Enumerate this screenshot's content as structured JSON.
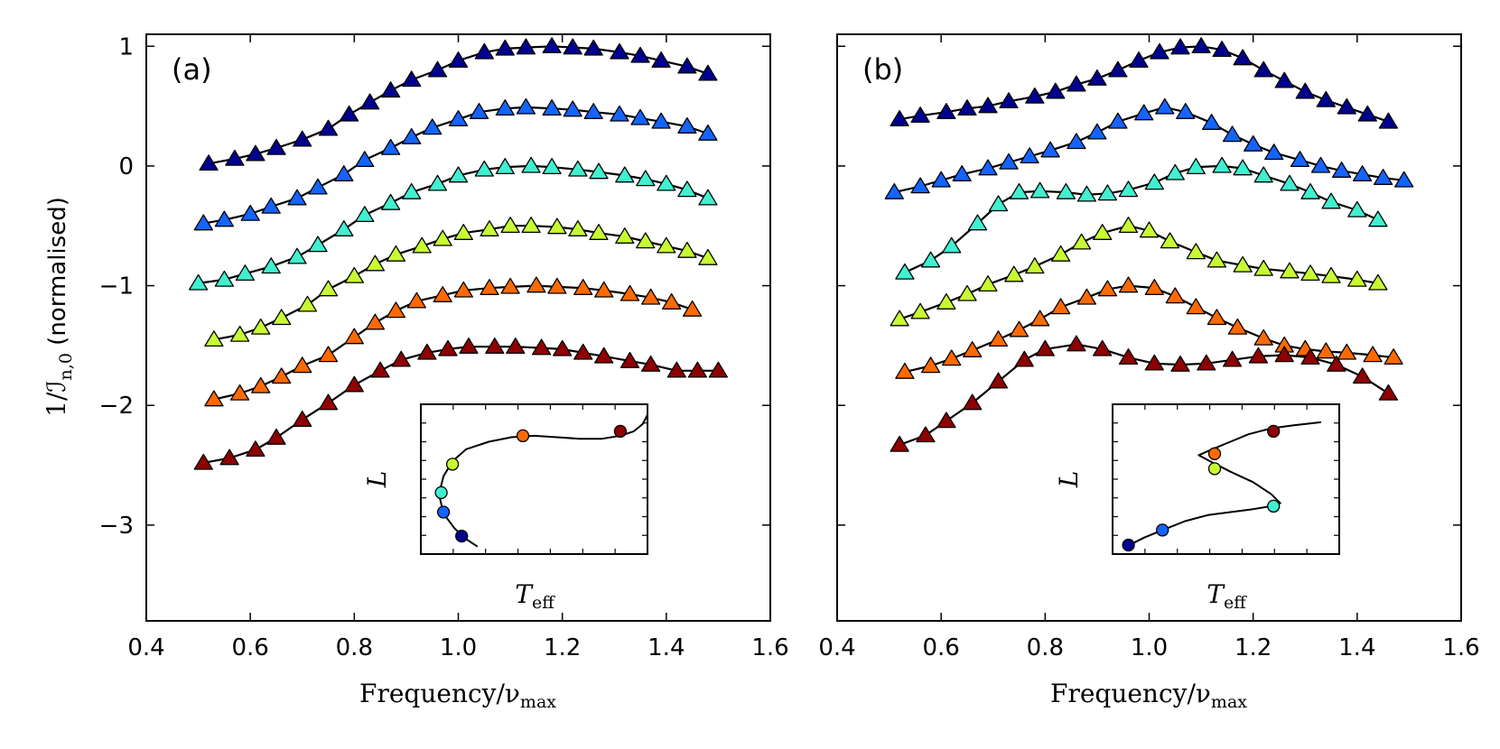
{
  "ylabel": {
    "main": "1/ℐ",
    "sub": "n,0",
    "suffix": " (normalised)"
  },
  "chart_data": [
    {
      "type": "line",
      "panel_label": "(a)",
      "xlabel": "Frequency/ν",
      "xlabel_sub": "max",
      "ylabel": "1/ℐn,0 (normalised)",
      "xlim": [
        0.4,
        1.6
      ],
      "ylim": [
        -3.8,
        1.1
      ],
      "xticks": [
        "0.4",
        "0.6",
        "0.8",
        "1.0",
        "1.2",
        "1.4",
        "1.6"
      ],
      "yticks": [
        "1",
        "0",
        "−1",
        "−2",
        "−3"
      ],
      "ytick_values": [
        1,
        0,
        -1,
        -2,
        -3
      ],
      "series": [
        {
          "name": "series-1",
          "color": "#00008f",
          "x": [
            0.52,
            0.57,
            0.61,
            0.65,
            0.7,
            0.75,
            0.79,
            0.83,
            0.87,
            0.91,
            0.96,
            1.0,
            1.05,
            1.09,
            1.13,
            1.18,
            1.22,
            1.26,
            1.31,
            1.35,
            1.39,
            1.44,
            1.48
          ],
          "y": [
            0.02,
            0.06,
            0.1,
            0.15,
            0.22,
            0.31,
            0.43,
            0.53,
            0.63,
            0.72,
            0.8,
            0.88,
            0.95,
            0.98,
            0.99,
            1.0,
            0.99,
            0.98,
            0.95,
            0.92,
            0.88,
            0.83,
            0.77
          ]
        },
        {
          "name": "series-2",
          "color": "#1464ff",
          "x": [
            0.51,
            0.55,
            0.6,
            0.64,
            0.69,
            0.73,
            0.78,
            0.82,
            0.87,
            0.91,
            0.95,
            1.0,
            1.04,
            1.09,
            1.13,
            1.18,
            1.22,
            1.26,
            1.31,
            1.35,
            1.39,
            1.44,
            1.48
          ],
          "y": [
            -0.48,
            -0.45,
            -0.4,
            -0.34,
            -0.27,
            -0.18,
            -0.07,
            0.05,
            0.15,
            0.24,
            0.32,
            0.39,
            0.45,
            0.48,
            0.49,
            0.48,
            0.47,
            0.45,
            0.43,
            0.4,
            0.37,
            0.33,
            0.27
          ]
        },
        {
          "name": "series-3",
          "color": "#40f0d0",
          "x": [
            0.5,
            0.55,
            0.59,
            0.64,
            0.69,
            0.73,
            0.78,
            0.82,
            0.87,
            0.91,
            0.96,
            1.0,
            1.05,
            1.09,
            1.14,
            1.18,
            1.23,
            1.27,
            1.32,
            1.36,
            1.4,
            1.44,
            1.48
          ],
          "y": [
            -0.98,
            -0.95,
            -0.9,
            -0.84,
            -0.76,
            -0.66,
            -0.53,
            -0.41,
            -0.31,
            -0.22,
            -0.15,
            -0.08,
            -0.03,
            -0.01,
            0.0,
            -0.01,
            -0.03,
            -0.05,
            -0.08,
            -0.11,
            -0.15,
            -0.2,
            -0.27
          ]
        },
        {
          "name": "series-4",
          "color": "#c8fa32",
          "x": [
            0.53,
            0.58,
            0.62,
            0.66,
            0.71,
            0.75,
            0.8,
            0.84,
            0.88,
            0.93,
            0.97,
            1.01,
            1.06,
            1.1,
            1.14,
            1.19,
            1.23,
            1.27,
            1.32,
            1.36,
            1.4,
            1.44,
            1.48
          ],
          "y": [
            -1.45,
            -1.41,
            -1.35,
            -1.27,
            -1.16,
            -1.03,
            -0.92,
            -0.82,
            -0.74,
            -0.67,
            -0.61,
            -0.56,
            -0.53,
            -0.5,
            -0.5,
            -0.51,
            -0.53,
            -0.56,
            -0.59,
            -0.63,
            -0.67,
            -0.71,
            -0.77
          ]
        },
        {
          "name": "series-5",
          "color": "#ff6a00",
          "x": [
            0.53,
            0.58,
            0.62,
            0.66,
            0.7,
            0.75,
            0.8,
            0.84,
            0.88,
            0.92,
            0.97,
            1.01,
            1.06,
            1.1,
            1.15,
            1.19,
            1.24,
            1.28,
            1.33,
            1.37,
            1.41,
            1.45
          ],
          "y": [
            -1.95,
            -1.9,
            -1.84,
            -1.76,
            -1.67,
            -1.58,
            -1.43,
            -1.31,
            -1.21,
            -1.13,
            -1.08,
            -1.04,
            -1.02,
            -1.01,
            -1.0,
            -1.01,
            -1.02,
            -1.04,
            -1.07,
            -1.1,
            -1.14,
            -1.2
          ]
        },
        {
          "name": "series-6",
          "color": "#8f0000",
          "x": [
            0.51,
            0.56,
            0.61,
            0.65,
            0.7,
            0.75,
            0.8,
            0.85,
            0.89,
            0.94,
            0.98,
            1.02,
            1.07,
            1.11,
            1.16,
            1.2,
            1.24,
            1.28,
            1.33,
            1.37,
            1.42,
            1.46,
            1.5
          ],
          "y": [
            -2.48,
            -2.44,
            -2.37,
            -2.27,
            -2.12,
            -1.98,
            -1.83,
            -1.71,
            -1.62,
            -1.56,
            -1.53,
            -1.51,
            -1.51,
            -1.51,
            -1.52,
            -1.53,
            -1.56,
            -1.59,
            -1.63,
            -1.66,
            -1.71,
            -1.71,
            -1.71
          ]
        }
      ],
      "inset": {
        "xlabel": "T",
        "xlabel_sub": "eff",
        "ylabel": "L",
        "track_x": [
          0.25,
          0.2,
          0.15,
          0.1,
          0.08,
          0.1,
          0.14,
          0.2,
          0.3,
          0.4,
          0.5,
          0.6,
          0.7,
          0.8,
          0.88,
          0.94,
          0.98,
          1.0
        ],
        "track_y": [
          0.05,
          0.1,
          0.17,
          0.27,
          0.4,
          0.52,
          0.62,
          0.7,
          0.75,
          0.78,
          0.79,
          0.78,
          0.77,
          0.77,
          0.79,
          0.82,
          0.87,
          0.93
        ],
        "points": [
          {
            "x": 0.18,
            "y": 0.12,
            "color": "#00008f"
          },
          {
            "x": 0.1,
            "y": 0.28,
            "color": "#1464ff"
          },
          {
            "x": 0.09,
            "y": 0.41,
            "color": "#40f0d0"
          },
          {
            "x": 0.14,
            "y": 0.6,
            "color": "#c8fa32"
          },
          {
            "x": 0.45,
            "y": 0.79,
            "color": "#ff6a00"
          },
          {
            "x": 0.88,
            "y": 0.82,
            "color": "#8f0000"
          }
        ]
      }
    },
    {
      "type": "line",
      "panel_label": "(b)",
      "xlabel": "Frequency/ν",
      "xlabel_sub": "max",
      "xlim": [
        0.4,
        1.6
      ],
      "ylim": [
        -3.8,
        1.1
      ],
      "xticks": [
        "0.4",
        "0.6",
        "0.8",
        "1.0",
        "1.2",
        "1.4",
        "1.6"
      ],
      "ytick_values": [
        1,
        0,
        -1,
        -2,
        -3
      ],
      "series": [
        {
          "name": "series-1",
          "color": "#00008f",
          "x": [
            0.52,
            0.56,
            0.61,
            0.65,
            0.69,
            0.73,
            0.78,
            0.82,
            0.86,
            0.9,
            0.94,
            0.98,
            1.02,
            1.06,
            1.1,
            1.14,
            1.18,
            1.22,
            1.26,
            1.3,
            1.34,
            1.38,
            1.42,
            1.46
          ],
          "y": [
            0.39,
            0.42,
            0.45,
            0.48,
            0.5,
            0.54,
            0.58,
            0.62,
            0.68,
            0.73,
            0.8,
            0.88,
            0.95,
            0.99,
            1.0,
            0.97,
            0.9,
            0.8,
            0.71,
            0.62,
            0.55,
            0.49,
            0.43,
            0.37
          ]
        },
        {
          "name": "series-2",
          "color": "#1464ff",
          "x": [
            0.51,
            0.56,
            0.6,
            0.64,
            0.69,
            0.73,
            0.77,
            0.81,
            0.86,
            0.9,
            0.94,
            0.99,
            1.03,
            1.07,
            1.12,
            1.16,
            1.2,
            1.24,
            1.29,
            1.33,
            1.37,
            1.41,
            1.45,
            1.49
          ],
          "y": [
            -0.22,
            -0.17,
            -0.12,
            -0.07,
            -0.02,
            0.03,
            0.08,
            0.13,
            0.2,
            0.28,
            0.37,
            0.44,
            0.49,
            0.45,
            0.36,
            0.26,
            0.18,
            0.11,
            0.05,
            0.0,
            -0.04,
            -0.07,
            -0.1,
            -0.12
          ]
        },
        {
          "name": "series-3",
          "color": "#40f0d0",
          "x": [
            0.53,
            0.58,
            0.62,
            0.67,
            0.71,
            0.75,
            0.79,
            0.84,
            0.88,
            0.92,
            0.96,
            1.01,
            1.05,
            1.09,
            1.14,
            1.18,
            1.22,
            1.27,
            1.31,
            1.35,
            1.4,
            1.44
          ],
          "y": [
            -0.89,
            -0.79,
            -0.67,
            -0.48,
            -0.32,
            -0.22,
            -0.21,
            -0.22,
            -0.24,
            -0.23,
            -0.2,
            -0.14,
            -0.06,
            -0.01,
            0.0,
            -0.02,
            -0.08,
            -0.15,
            -0.22,
            -0.3,
            -0.37,
            -0.45
          ]
        },
        {
          "name": "series-4",
          "color": "#c8fa32",
          "x": [
            0.52,
            0.56,
            0.61,
            0.65,
            0.69,
            0.74,
            0.78,
            0.83,
            0.87,
            0.91,
            0.96,
            1.0,
            1.04,
            1.09,
            1.13,
            1.18,
            1.22,
            1.27,
            1.31,
            1.35,
            1.4,
            1.44
          ],
          "y": [
            -1.28,
            -1.22,
            -1.14,
            -1.07,
            -0.99,
            -0.91,
            -0.84,
            -0.74,
            -0.64,
            -0.56,
            -0.5,
            -0.54,
            -0.63,
            -0.72,
            -0.79,
            -0.83,
            -0.86,
            -0.88,
            -0.9,
            -0.92,
            -0.95,
            -0.98
          ]
        },
        {
          "name": "series-5",
          "color": "#ff6a00",
          "x": [
            0.53,
            0.58,
            0.62,
            0.66,
            0.71,
            0.75,
            0.79,
            0.83,
            0.88,
            0.92,
            0.96,
            1.01,
            1.05,
            1.09,
            1.13,
            1.17,
            1.22,
            1.26,
            1.3,
            1.34,
            1.38,
            1.43,
            1.47
          ],
          "y": [
            -1.72,
            -1.67,
            -1.61,
            -1.54,
            -1.45,
            -1.37,
            -1.28,
            -1.18,
            -1.1,
            -1.03,
            -1.0,
            -1.02,
            -1.09,
            -1.18,
            -1.27,
            -1.35,
            -1.44,
            -1.5,
            -1.53,
            -1.55,
            -1.56,
            -1.58,
            -1.6
          ]
        },
        {
          "name": "series-6",
          "color": "#8f0000",
          "x": [
            0.52,
            0.57,
            0.61,
            0.66,
            0.71,
            0.76,
            0.8,
            0.86,
            0.91,
            0.96,
            1.01,
            1.06,
            1.11,
            1.16,
            1.21,
            1.26,
            1.31,
            1.36,
            1.41,
            1.46
          ],
          "y": [
            -2.33,
            -2.25,
            -2.13,
            -1.98,
            -1.8,
            -1.62,
            -1.53,
            -1.49,
            -1.53,
            -1.6,
            -1.65,
            -1.66,
            -1.65,
            -1.62,
            -1.59,
            -1.58,
            -1.6,
            -1.66,
            -1.76,
            -1.9
          ]
        }
      ],
      "inset": {
        "xlabel": "T",
        "xlabel_sub": "eff",
        "ylabel": "L",
        "track_x": [
          0.06,
          0.14,
          0.22,
          0.32,
          0.42,
          0.52,
          0.62,
          0.7,
          0.74,
          0.7,
          0.62,
          0.52,
          0.43,
          0.38,
          0.44,
          0.52,
          0.6,
          0.7,
          0.8,
          0.92
        ],
        "track_y": [
          0.05,
          0.11,
          0.16,
          0.22,
          0.26,
          0.28,
          0.3,
          0.32,
          0.34,
          0.4,
          0.48,
          0.55,
          0.62,
          0.66,
          0.7,
          0.75,
          0.8,
          0.84,
          0.86,
          0.88
        ],
        "points": [
          {
            "x": 0.07,
            "y": 0.06,
            "color": "#00008f"
          },
          {
            "x": 0.22,
            "y": 0.16,
            "color": "#1464ff"
          },
          {
            "x": 0.71,
            "y": 0.32,
            "color": "#40f0d0"
          },
          {
            "x": 0.45,
            "y": 0.57,
            "color": "#c8fa32"
          },
          {
            "x": 0.45,
            "y": 0.67,
            "color": "#ff6a00"
          },
          {
            "x": 0.71,
            "y": 0.82,
            "color": "#8f0000"
          }
        ]
      }
    }
  ]
}
